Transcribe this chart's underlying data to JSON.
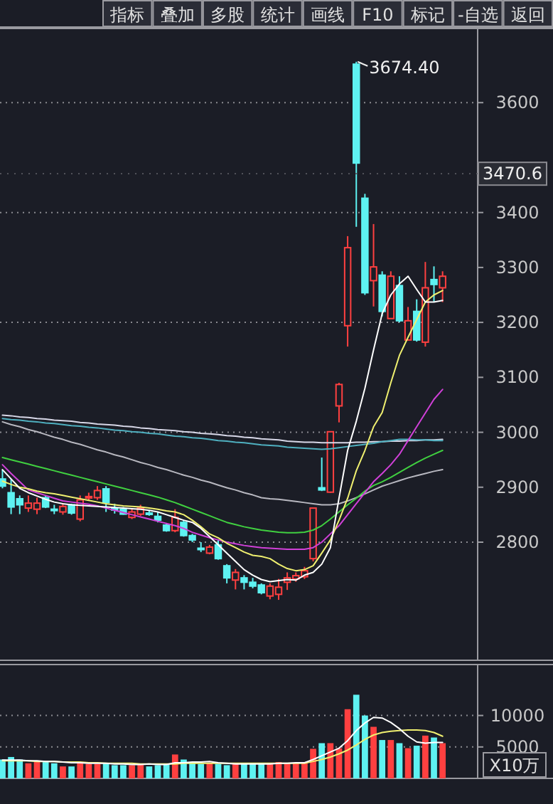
{
  "chart_data": [
    {
      "type": "other",
      "annotations": [
        "指标",
        "叠加",
        "多股",
        "统计",
        "画线",
        "F10",
        "标记",
        "-自选",
        "返回"
      ]
    },
    {
      "type": "candlestick",
      "categories": [
        null,
        null,
        null,
        null,
        null,
        null,
        null,
        null,
        null,
        null,
        null,
        null,
        null,
        null,
        null,
        null,
        null,
        null,
        null,
        null,
        null,
        null,
        null,
        null,
        null,
        null,
        null,
        null,
        null,
        null,
        null,
        null,
        null,
        null,
        null,
        null,
        null,
        null,
        null,
        null,
        null,
        null,
        null,
        null,
        null,
        null,
        null,
        null,
        null,
        null,
        null,
        null
      ],
      "ohlc": [
        [
          2915,
          2932,
          2898,
          2902
        ],
        [
          2890,
          2915,
          2851,
          2864
        ],
        [
          2879,
          2885,
          2851,
          2868
        ],
        [
          2862,
          2885,
          2855,
          2871
        ],
        [
          2860,
          2881,
          2851,
          2871
        ],
        [
          2881,
          2885,
          2862,
          2864
        ],
        [
          2860,
          2868,
          2851,
          2858
        ],
        [
          2855,
          2871,
          2850,
          2865
        ],
        [
          2868,
          2870,
          2850,
          2853
        ],
        [
          2842,
          2885,
          2838,
          2877
        ],
        [
          2881,
          2890,
          2875,
          2883
        ],
        [
          2881,
          2902,
          2877,
          2894
        ],
        [
          2897,
          2902,
          2855,
          2872
        ],
        [
          2861,
          2870,
          2852,
          2860
        ],
        [
          2860,
          2864,
          2850,
          2851
        ],
        [
          2845,
          2862,
          2842,
          2855
        ],
        [
          2851,
          2868,
          2848,
          2862
        ],
        [
          2853,
          2858,
          2848,
          2852
        ],
        [
          2847,
          2855,
          2836,
          2840
        ],
        [
          2831,
          2835,
          2819,
          2821
        ],
        [
          2821,
          2860,
          2818,
          2845
        ],
        [
          2836,
          2840,
          2810,
          2812
        ],
        [
          2812,
          2815,
          2800,
          2804
        ],
        [
          2789,
          2800,
          2782,
          2788
        ],
        [
          2780,
          2795,
          2778,
          2791
        ],
        [
          2795,
          2805,
          2768,
          2770
        ],
        [
          2757,
          2760,
          2725,
          2735
        ],
        [
          2731,
          2751,
          2714,
          2745
        ],
        [
          2735,
          2740,
          2714,
          2727
        ],
        [
          2727,
          2735,
          2716,
          2720
        ],
        [
          2722,
          2725,
          2705,
          2708
        ],
        [
          2702,
          2725,
          2696,
          2720
        ],
        [
          2705,
          2733,
          2695,
          2718
        ],
        [
          2727,
          2745,
          2713,
          2735
        ],
        [
          2733,
          2745,
          2728,
          2739
        ],
        [
          2737,
          2755,
          2733,
          2748
        ],
        [
          2770,
          2862,
          2765,
          2862
        ],
        [
          2899,
          2954,
          2893,
          2895
        ],
        [
          2891,
          3001,
          2890,
          3001
        ],
        [
          3048,
          3090,
          3018,
          3087
        ],
        [
          3194,
          3357,
          3156,
          3336
        ],
        [
          3670,
          3674.4,
          3374,
          3490
        ],
        [
          3426,
          3434,
          3250,
          3254
        ],
        [
          3276,
          3379,
          3229,
          3301
        ],
        [
          3286,
          3293,
          3211,
          3220
        ],
        [
          3207,
          3293,
          3207,
          3284
        ],
        [
          3267,
          3284,
          3200,
          3203
        ],
        [
          3168,
          3228,
          3168,
          3203
        ],
        [
          3220,
          3242,
          3165,
          3168
        ],
        [
          3164,
          3310,
          3156,
          3263
        ],
        [
          3278,
          3302,
          3237,
          3269
        ],
        [
          3263,
          3293,
          3237,
          3284
        ]
      ],
      "colors": [
        "#5ef2f2",
        "#5ef2f2",
        "#5ef2f2",
        "#ff4040",
        "#ff4040",
        "#5ef2f2",
        "#5ef2f2",
        "#ff4040",
        "#5ef2f2",
        "#ff4040",
        "#ff4040",
        "#ff4040",
        "#5ef2f2",
        "#5ef2f2",
        "#5ef2f2",
        "#ff4040",
        "#ff4040",
        "#5ef2f2",
        "#5ef2f2",
        "#5ef2f2",
        "#ff4040",
        "#5ef2f2",
        "#5ef2f2",
        "#5ef2f2",
        "#ff4040",
        "#5ef2f2",
        "#5ef2f2",
        "#ff4040",
        "#5ef2f2",
        "#5ef2f2",
        "#5ef2f2",
        "#ff4040",
        "#ff4040",
        "#ff4040",
        "#ff4040",
        "#ff4040",
        "#ff4040",
        "#5ef2f2",
        "#ff4040",
        "#ff4040",
        "#ff4040",
        "#5ef2f2",
        "#5ef2f2",
        "#ff4040",
        "#5ef2f2",
        "#ff4040",
        "#5ef2f2",
        "#ff4040",
        "#5ef2f2",
        "#ff4040",
        "#5ef2f2",
        "#ff4040"
      ],
      "series": [
        {
          "type": "line",
          "color": "#d8d8e8",
          "values": [
            3031,
            3030,
            3028,
            3027,
            3025,
            3024,
            3022,
            3021,
            3020,
            3018,
            3017,
            3015,
            3014,
            3013,
            3011,
            3010,
            3008,
            3007,
            3005,
            3004,
            3003,
            3001,
            3000,
            2998,
            2997,
            2996,
            2994,
            2993,
            2991,
            2990,
            2988,
            2987,
            2986,
            2984,
            2983,
            2982,
            2982,
            2981,
            2981,
            2981,
            2981,
            2982,
            2982,
            2983,
            2983,
            2984,
            2984,
            2985,
            2985,
            2986,
            2986,
            2987
          ]
        },
        {
          "type": "line",
          "color": "#4fb0c0",
          "values": [
            3025,
            3023,
            3022,
            3020,
            3019,
            3017,
            3016,
            3014,
            3012,
            3011,
            3009,
            3008,
            3006,
            3004,
            3003,
            3001,
            3000,
            2998,
            2997,
            2995,
            2993,
            2992,
            2990,
            2989,
            2987,
            2985,
            2984,
            2982,
            2981,
            2979,
            2977,
            2976,
            2975,
            2973,
            2972,
            2971,
            2970,
            2969,
            2970,
            2972,
            2974,
            2976,
            2978,
            2980,
            2983,
            2985,
            2987,
            2987,
            2986,
            2986,
            2985,
            2985
          ]
        },
        {
          "type": "line",
          "color": "#b8b8c0",
          "values": [
            3019,
            3014,
            3010,
            3005,
            3001,
            2996,
            2991,
            2987,
            2982,
            2978,
            2973,
            2968,
            2964,
            2959,
            2955,
            2950,
            2945,
            2941,
            2936,
            2932,
            2927,
            2922,
            2918,
            2913,
            2909,
            2904,
            2899,
            2895,
            2890,
            2886,
            2881,
            2879,
            2878,
            2876,
            2874,
            2872,
            2870,
            2868,
            2868,
            2870,
            2875,
            2881,
            2888,
            2895,
            2902,
            2907,
            2912,
            2917,
            2921,
            2925,
            2929,
            2932
          ]
        },
        {
          "type": "line",
          "color": "#40d040",
          "values": [
            2954,
            2950,
            2946,
            2942,
            2938,
            2934,
            2930,
            2926,
            2922,
            2918,
            2914,
            2910,
            2906,
            2902,
            2898,
            2894,
            2890,
            2886,
            2882,
            2877,
            2872,
            2866,
            2860,
            2854,
            2848,
            2842,
            2836,
            2832,
            2828,
            2825,
            2822,
            2820,
            2818,
            2817,
            2817,
            2818,
            2822,
            2830,
            2842,
            2855,
            2868,
            2880,
            2893,
            2903,
            2910,
            2918,
            2927,
            2936,
            2945,
            2953,
            2960,
            2967
          ]
        },
        {
          "type": "line",
          "color": "#d040d8",
          "values": [
            2941,
            2925,
            2910,
            2895,
            2890,
            2885,
            2880,
            2875,
            2873,
            2871,
            2869,
            2866,
            2862,
            2858,
            2854,
            2850,
            2846,
            2842,
            2838,
            2834,
            2830,
            2825,
            2818,
            2813,
            2808,
            2804,
            2800,
            2797,
            2794,
            2792,
            2790,
            2789,
            2788,
            2787,
            2787,
            2787,
            2790,
            2800,
            2815,
            2830,
            2850,
            2870,
            2890,
            2910,
            2925,
            2941,
            2960,
            2985,
            3010,
            3035,
            3060,
            3078
          ]
        },
        {
          "type": "line",
          "color": "#f0f070",
          "values": [
            2911,
            2905,
            2900,
            2897,
            2893,
            2890,
            2888,
            2885,
            2882,
            2879,
            2876,
            2873,
            2870,
            2868,
            2866,
            2865,
            2864,
            2862,
            2860,
            2857,
            2855,
            2850,
            2840,
            2828,
            2815,
            2808,
            2798,
            2790,
            2782,
            2776,
            2774,
            2770,
            2760,
            2752,
            2748,
            2750,
            2757,
            2780,
            2804,
            2840,
            2880,
            2930,
            2967,
            3010,
            3036,
            3090,
            3140,
            3173,
            3205,
            3237,
            3250,
            3258
          ]
        },
        {
          "type": "line",
          "color": "#ffffff",
          "values": [
            2932,
            2915,
            2898,
            2890,
            2884,
            2878,
            2873,
            2870,
            2868,
            2867,
            2866,
            2865,
            2864,
            2863,
            2862,
            2861,
            2860,
            2858,
            2855,
            2850,
            2845,
            2840,
            2836,
            2825,
            2810,
            2795,
            2780,
            2765,
            2750,
            2740,
            2732,
            2728,
            2730,
            2732,
            2731,
            2740,
            2745,
            2760,
            2790,
            2880,
            2967,
            3020,
            3080,
            3150,
            3216,
            3250,
            3270,
            3284,
            3260,
            3237,
            3237,
            3240
          ]
        }
      ],
      "ylim": [
        2585,
        3735
      ],
      "yticks": [
        2800,
        2900,
        3000,
        3100,
        3200,
        3300,
        3400,
        3600
      ],
      "ref_lines": [
        {
          "axis": "y",
          "value": 2800,
          "line_style": "dotted"
        },
        {
          "axis": "y",
          "value": 3000,
          "line_style": "dotted"
        },
        {
          "axis": "y",
          "value": 3200,
          "line_style": "dotted"
        },
        {
          "axis": "y",
          "value": 3400,
          "line_style": "dotted"
        },
        {
          "axis": "y",
          "value": 3600,
          "line_style": "dotted"
        },
        {
          "axis": "y",
          "value": 3470.6,
          "label": "3470.6"
        }
      ],
      "annotations": [
        "3674.40"
      ]
    },
    {
      "type": "bar",
      "categories": [
        null,
        null,
        null,
        null,
        null,
        null,
        null,
        null,
        null,
        null,
        null,
        null,
        null,
        null,
        null,
        null,
        null,
        null,
        null,
        null,
        null,
        null,
        null,
        null,
        null,
        null,
        null,
        null,
        null,
        null,
        null,
        null,
        null,
        null,
        null,
        null,
        null,
        null,
        null,
        null,
        null,
        null,
        null,
        null,
        null,
        null,
        null,
        null,
        null,
        null,
        null,
        null
      ],
      "series": [
        {
          "type": "bar",
          "colors": [
            "#5ef2f2",
            "#5ef2f2",
            "#5ef2f2",
            "#ff4040",
            "#ff4040",
            "#5ef2f2",
            "#5ef2f2",
            "#ff4040",
            "#5ef2f2",
            "#ff4040",
            "#ff4040",
            "#ff4040",
            "#5ef2f2",
            "#5ef2f2",
            "#5ef2f2",
            "#ff4040",
            "#ff4040",
            "#5ef2f2",
            "#5ef2f2",
            "#5ef2f2",
            "#ff4040",
            "#5ef2f2",
            "#5ef2f2",
            "#5ef2f2",
            "#ff4040",
            "#5ef2f2",
            "#5ef2f2",
            "#ff4040",
            "#5ef2f2",
            "#5ef2f2",
            "#5ef2f2",
            "#ff4040",
            "#ff4040",
            "#ff4040",
            "#ff4040",
            "#ff4040",
            "#ff4040",
            "#5ef2f2",
            "#ff4040",
            "#ff4040",
            "#ff4040",
            "#5ef2f2",
            "#5ef2f2",
            "#ff4040",
            "#5ef2f2",
            "#ff4040",
            "#5ef2f2",
            "#ff4040",
            "#5ef2f2",
            "#ff4040",
            "#5ef2f2",
            "#ff4040"
          ],
          "values": [
            3000,
            3400,
            3000,
            2400,
            2600,
            2600,
            2400,
            1900,
            1900,
            2400,
            2300,
            2300,
            2400,
            2100,
            2100,
            2100,
            2300,
            1900,
            2100,
            2300,
            3800,
            3000,
            2400,
            2300,
            2400,
            2300,
            2100,
            2300,
            2300,
            2300,
            2300,
            2300,
            2600,
            2400,
            2400,
            2400,
            4700,
            5600,
            5600,
            4800,
            11000,
            13300,
            10000,
            8200,
            6100,
            6100,
            5600,
            4800,
            5200,
            6800,
            6500,
            5600
          ]
        },
        {
          "type": "line",
          "color": "#f0f070",
          "values": [
            2800,
            2800,
            2800,
            2800,
            2700,
            2700,
            2700,
            2600,
            2600,
            2600,
            2500,
            2500,
            2400,
            2400,
            2400,
            2400,
            2300,
            2300,
            2300,
            2300,
            2300,
            2400,
            2400,
            2400,
            2400,
            2400,
            2400,
            2400,
            2400,
            2400,
            2400,
            2400,
            2400,
            2400,
            2400,
            2400,
            2700,
            3000,
            3400,
            3900,
            4500,
            5300,
            6200,
            6900,
            7300,
            7500,
            7600,
            7700,
            7700,
            7600,
            7300,
            6700
          ]
        },
        {
          "type": "line",
          "color": "#ffffff",
          "values": [
            2900,
            2900,
            2900,
            2800,
            2800,
            2700,
            2700,
            2600,
            2500,
            2500,
            2400,
            2400,
            2400,
            2300,
            2300,
            2200,
            2200,
            2300,
            2200,
            2200,
            2500,
            2500,
            2600,
            2600,
            2700,
            2500,
            2400,
            2300,
            2300,
            2300,
            2300,
            2300,
            2400,
            2400,
            2500,
            2500,
            3000,
            3600,
            4200,
            4800,
            6000,
            7600,
            8800,
            9700,
            9600,
            8900,
            7900,
            6700,
            5800,
            5600,
            5700,
            5700
          ]
        }
      ],
      "ylim": [
        0,
        18100
      ],
      "yticks": [
        5000,
        10000
      ],
      "ref_lines": [
        {
          "axis": "y",
          "value": 5000,
          "line_style": "dotted"
        },
        {
          "axis": "y",
          "value": 10000,
          "line_style": "dotted"
        }
      ],
      "annotations": [
        "X10万"
      ]
    }
  ]
}
